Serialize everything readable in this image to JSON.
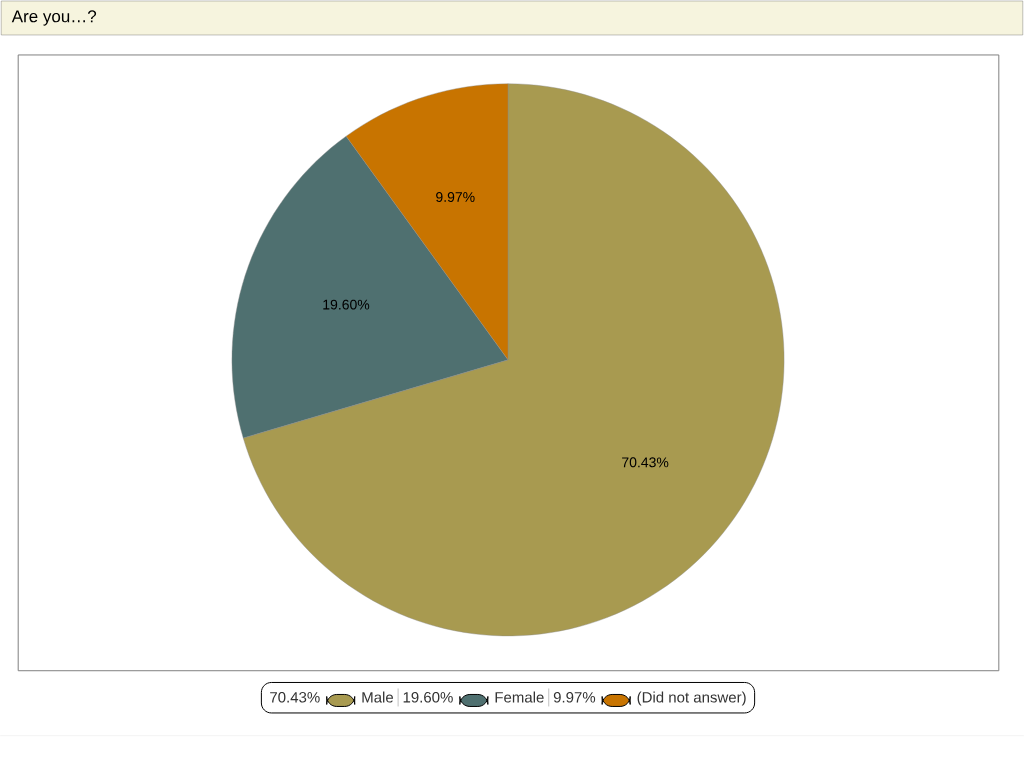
{
  "chart_data": {
    "type": "pie",
    "title": "Are you…?",
    "categories": [
      "Male",
      "Female",
      "(Did not answer)"
    ],
    "values": [
      70.43,
      19.6,
      9.97
    ],
    "value_labels": [
      "70.43%",
      "19.60%",
      "9.97%"
    ],
    "colors": [
      "#a89a50",
      "#4f7070",
      "#c87400"
    ],
    "legend": "bottom"
  }
}
